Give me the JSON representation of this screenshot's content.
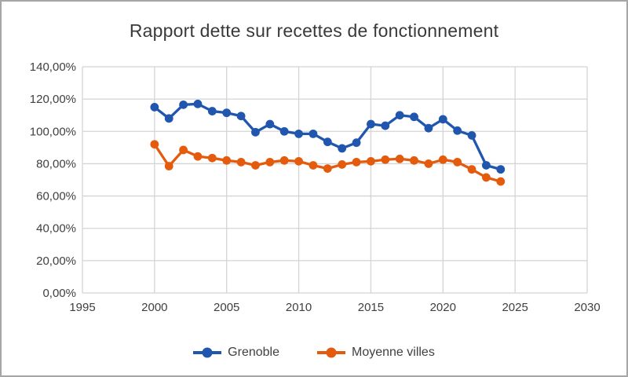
{
  "chart_data": {
    "type": "line",
    "title": "Rapport dette sur recettes de fonctionnement",
    "x": [
      2000,
      2001,
      2002,
      2003,
      2004,
      2005,
      2006,
      2007,
      2008,
      2009,
      2010,
      2011,
      2012,
      2013,
      2014,
      2015,
      2016,
      2017,
      2018,
      2019,
      2020,
      2021,
      2022,
      2023,
      2024
    ],
    "series": [
      {
        "name": "Grenoble",
        "color": "#2056AE",
        "values": [
          115,
          108,
          116.5,
          117,
          112.5,
          111.5,
          109.5,
          99.5,
          104.5,
          100,
          98.5,
          98.5,
          93.5,
          89.5,
          93,
          104.5,
          103.5,
          110,
          109,
          102,
          107.5,
          100.5,
          97.5,
          79,
          76.5
        ]
      },
      {
        "name": "Moyenne villes",
        "color": "#E55B0D",
        "values": [
          92,
          78.5,
          88.5,
          84.5,
          83.5,
          82,
          81,
          79,
          81,
          82,
          81.5,
          79,
          77,
          79.5,
          81,
          81.5,
          82.5,
          83,
          82,
          80,
          82.5,
          81,
          76.5,
          71.5,
          69
        ]
      }
    ],
    "xlim": [
      1995,
      2030
    ],
    "ylim": [
      0,
      140
    ],
    "x_ticks": [
      "1995",
      "2000",
      "2005",
      "2010",
      "2015",
      "2020",
      "2025",
      "2030"
    ],
    "y_ticks": [
      {
        "value": 0,
        "label": "0,00%"
      },
      {
        "value": 20,
        "label": "20,00%"
      },
      {
        "value": 40,
        "label": "40,00%"
      },
      {
        "value": 60,
        "label": "60,00%"
      },
      {
        "value": 80,
        "label": "80,00%"
      },
      {
        "value": 100,
        "label": "100,00%"
      },
      {
        "value": 120,
        "label": "120,00%"
      },
      {
        "value": 140,
        "label": "140,00%"
      }
    ],
    "grid": true,
    "legend_position": "bottom",
    "gridline_color": "#D4D4D4",
    "tick_color": "#404040",
    "title_color": "#3A3A3A"
  }
}
